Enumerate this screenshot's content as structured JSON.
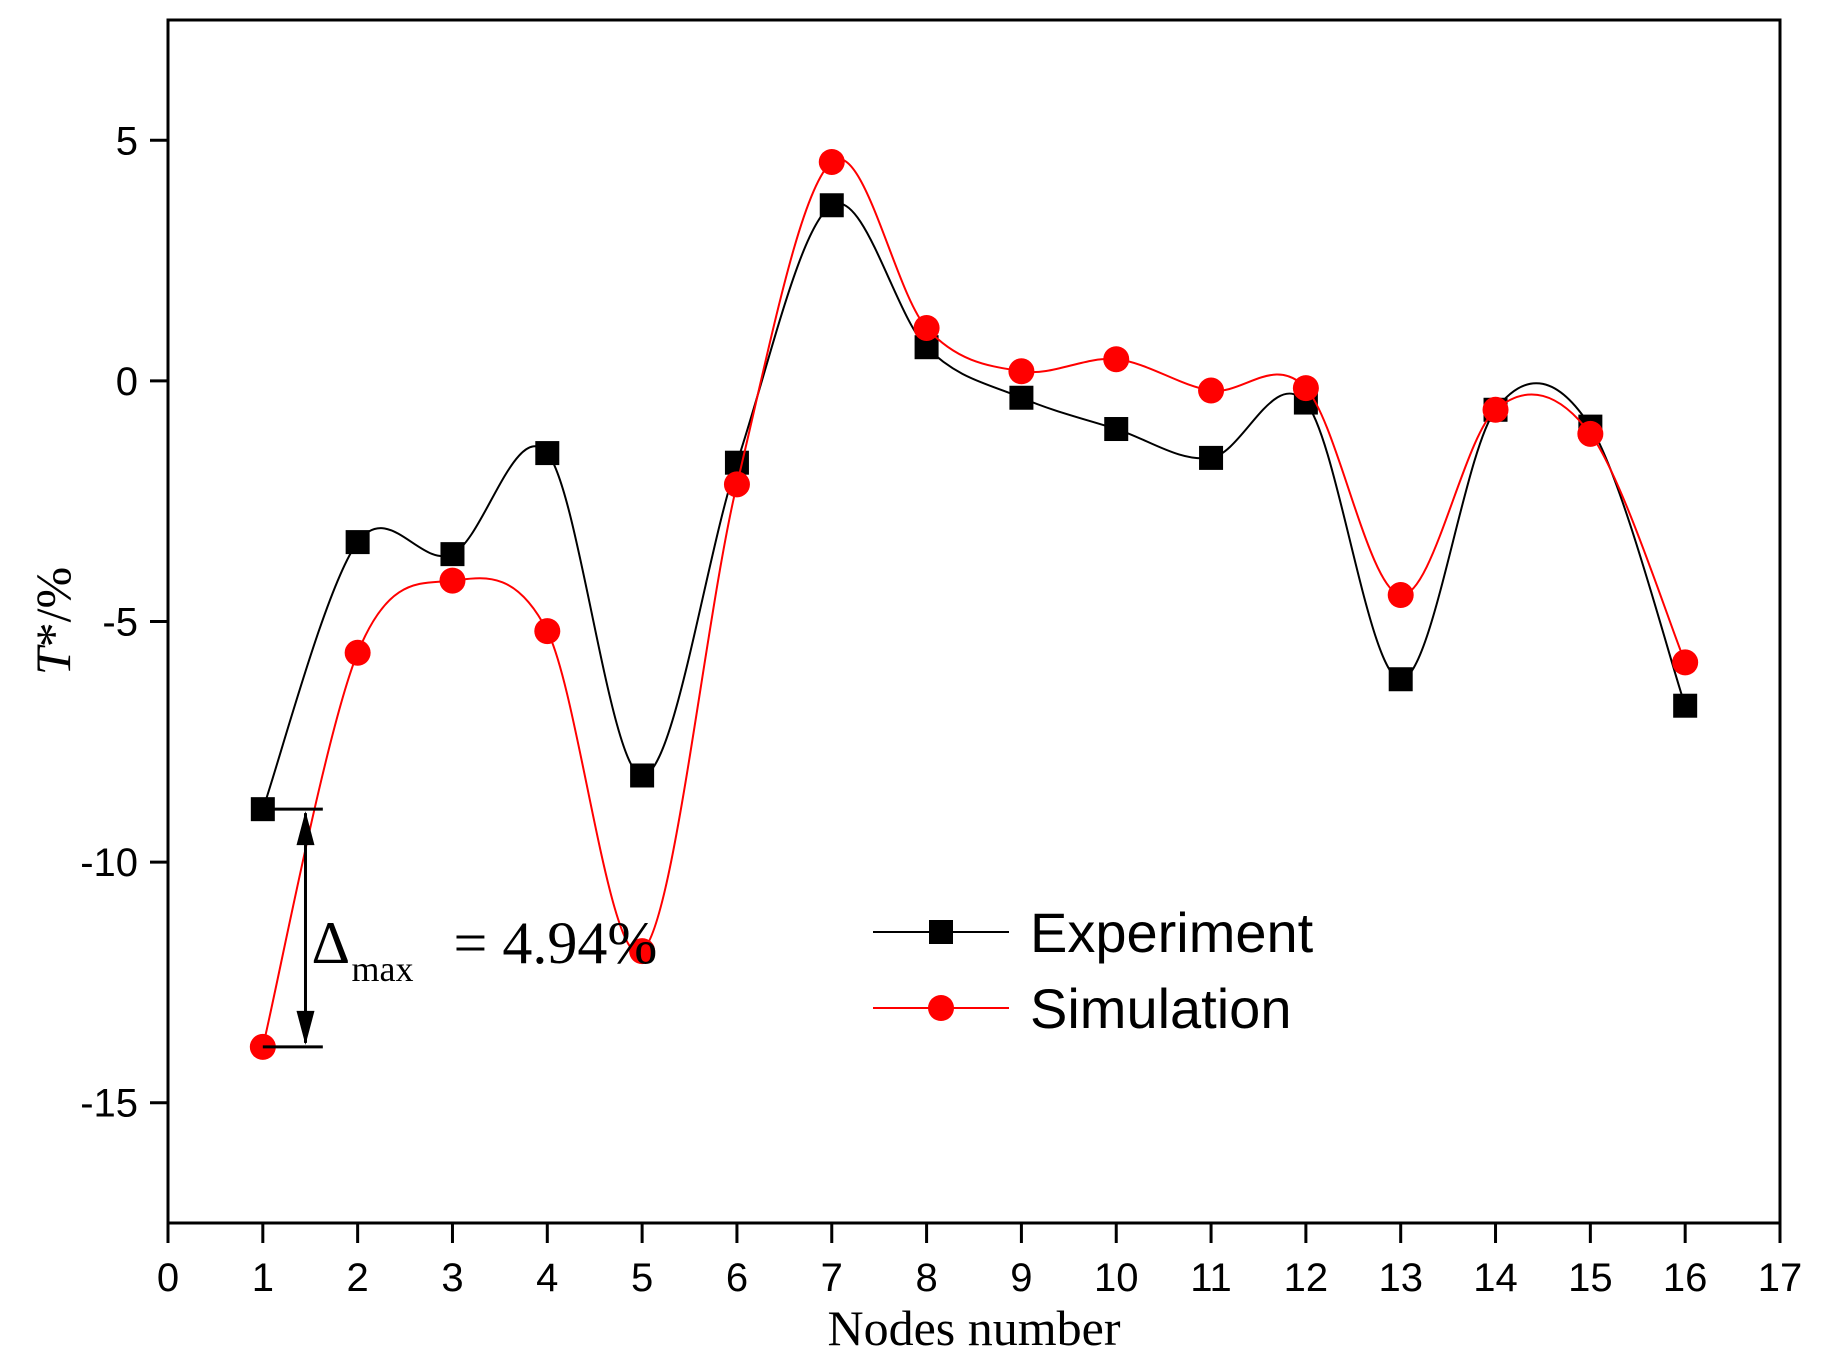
{
  "chart_data": {
    "type": "line",
    "title": "",
    "xlabel": "Nodes number",
    "ylabel_italic": "T",
    "ylabel_rest": "*/%",
    "xlim": [
      0,
      17
    ],
    "ylim": [
      -17.5,
      7.5
    ],
    "xticks": [
      0,
      1,
      2,
      3,
      4,
      5,
      6,
      7,
      8,
      9,
      10,
      11,
      12,
      13,
      14,
      15,
      16,
      17
    ],
    "yticks": [
      5,
      0,
      -5,
      -10,
      -15
    ],
    "grid": false,
    "legend_position": "center-right",
    "series": [
      {
        "name": "Experiment",
        "color": "#000000",
        "marker": "square",
        "x": [
          1,
          2,
          3,
          4,
          5,
          6,
          7,
          8,
          9,
          10,
          11,
          12,
          13,
          14,
          15,
          16
        ],
        "values": [
          -8.9,
          -3.35,
          -3.6,
          -1.5,
          -8.2,
          -1.7,
          3.65,
          0.7,
          -0.35,
          -1.0,
          -1.6,
          -0.45,
          -6.2,
          -0.6,
          -0.95,
          -6.75
        ]
      },
      {
        "name": "Simulation",
        "color": "#ff0000",
        "marker": "circle",
        "x": [
          1,
          2,
          3,
          4,
          5,
          6,
          7,
          8,
          9,
          10,
          11,
          12,
          13,
          14,
          15,
          16
        ],
        "values": [
          -13.84,
          -5.65,
          -4.15,
          -5.2,
          -11.85,
          -2.15,
          4.55,
          1.1,
          0.2,
          0.45,
          -0.2,
          -0.15,
          -4.45,
          -0.6,
          -1.1,
          -5.85
        ]
      }
    ],
    "annotation": {
      "delta_symbol": "Δ",
      "subscript": "max",
      "value_text": "= 4.94%",
      "x": 1.45,
      "y_top": -8.9,
      "y_bottom": -13.84
    }
  }
}
